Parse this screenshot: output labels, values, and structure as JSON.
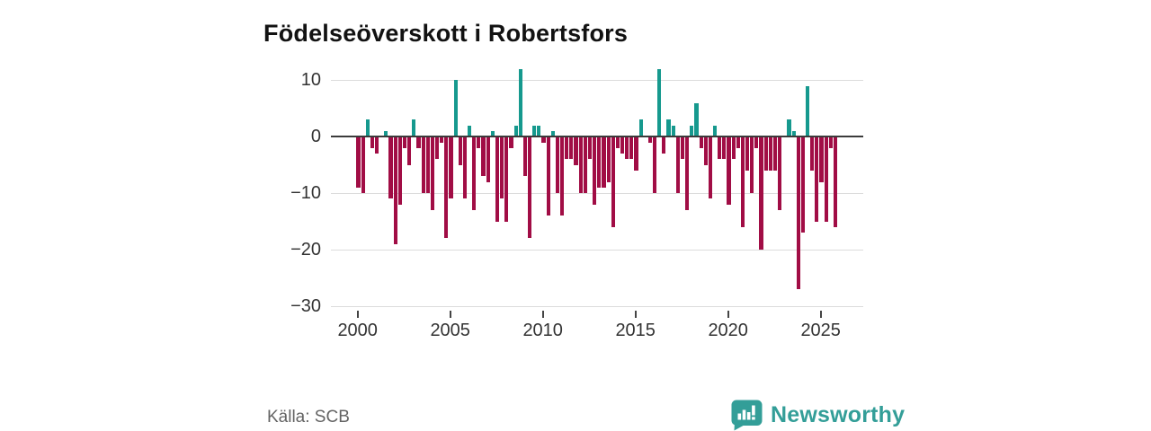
{
  "title": "Födelseöverskott i Robertsfors",
  "source": "Källa: SCB",
  "brand": {
    "name": "Newsworthy",
    "color": "#339e98",
    "logo_icon": "bar-chart-speech-bubble-icon"
  },
  "chart_data": {
    "type": "bar",
    "title": "Födelseöverskott i Robertsfors",
    "frequency": "quarterly",
    "start": "2000-Q1",
    "end": "2025-Q4",
    "xlabel": "",
    "ylabel": "",
    "ylim": [
      -30,
      13
    ],
    "grid": "horizontal",
    "legend": "none",
    "positive_color": "#16998e",
    "negative_color": "#a10d45",
    "zero_line_color": "#3b3b3b",
    "gridline_color": "#dcdcdc",
    "y_ticks": [
      {
        "value": 10,
        "label": "10"
      },
      {
        "value": 0,
        "label": "0"
      },
      {
        "value": -10,
        "label": "−10"
      },
      {
        "value": -20,
        "label": "−20"
      },
      {
        "value": -30,
        "label": "−30"
      }
    ],
    "x_ticks": [
      {
        "year": 2000,
        "label": "2000"
      },
      {
        "year": 2005,
        "label": "2005"
      },
      {
        "year": 2010,
        "label": "2010"
      },
      {
        "year": 2015,
        "label": "2015"
      },
      {
        "year": 2020,
        "label": "2020"
      },
      {
        "year": 2025,
        "label": "2025"
      }
    ],
    "series": [
      {
        "name": "Födelseöverskott",
        "years": [
          {
            "year": 2000,
            "q": [
              -9,
              -10,
              3,
              -2
            ]
          },
          {
            "year": 2001,
            "q": [
              -3,
              0,
              1,
              -11
            ]
          },
          {
            "year": 2002,
            "q": [
              -19,
              -12,
              -2,
              -5
            ]
          },
          {
            "year": 2003,
            "q": [
              3,
              -2,
              -10,
              -10
            ]
          },
          {
            "year": 2004,
            "q": [
              -13,
              -4,
              -1,
              -18
            ]
          },
          {
            "year": 2005,
            "q": [
              -11,
              10,
              -5,
              -11
            ]
          },
          {
            "year": 2006,
            "q": [
              2,
              -13,
              -2,
              -7
            ]
          },
          {
            "year": 2007,
            "q": [
              -8,
              1,
              -15,
              -11
            ]
          },
          {
            "year": 2008,
            "q": [
              -15,
              -2,
              2,
              12
            ]
          },
          {
            "year": 2009,
            "q": [
              -7,
              -18,
              2,
              2
            ]
          },
          {
            "year": 2010,
            "q": [
              -1,
              -14,
              1,
              -10
            ]
          },
          {
            "year": 2011,
            "q": [
              -14,
              -4,
              -4,
              -5
            ]
          },
          {
            "year": 2012,
            "q": [
              -10,
              -10,
              -4,
              -12
            ]
          },
          {
            "year": 2013,
            "q": [
              -9,
              -9,
              -8,
              -16
            ]
          },
          {
            "year": 2014,
            "q": [
              -2,
              -3,
              -4,
              -4
            ]
          },
          {
            "year": 2015,
            "q": [
              -6,
              3,
              0,
              -1
            ]
          },
          {
            "year": 2016,
            "q": [
              -10,
              12,
              -3,
              3
            ]
          },
          {
            "year": 2017,
            "q": [
              2,
              -10,
              -4,
              -13
            ]
          },
          {
            "year": 2018,
            "q": [
              2,
              6,
              -2,
              -5
            ]
          },
          {
            "year": 2019,
            "q": [
              -11,
              2,
              -4,
              -4
            ]
          },
          {
            "year": 2020,
            "q": [
              -12,
              -4,
              -2,
              -16
            ]
          },
          {
            "year": 2021,
            "q": [
              -6,
              -10,
              -2,
              -20
            ]
          },
          {
            "year": 2022,
            "q": [
              -6,
              -6,
              -6,
              -13
            ]
          },
          {
            "year": 2023,
            "q": [
              0,
              3,
              1,
              -27
            ]
          },
          {
            "year": 2024,
            "q": [
              -17,
              9,
              -6,
              -15
            ]
          },
          {
            "year": 2025,
            "q": [
              -8,
              -15,
              -2,
              -16
            ]
          }
        ]
      }
    ]
  }
}
